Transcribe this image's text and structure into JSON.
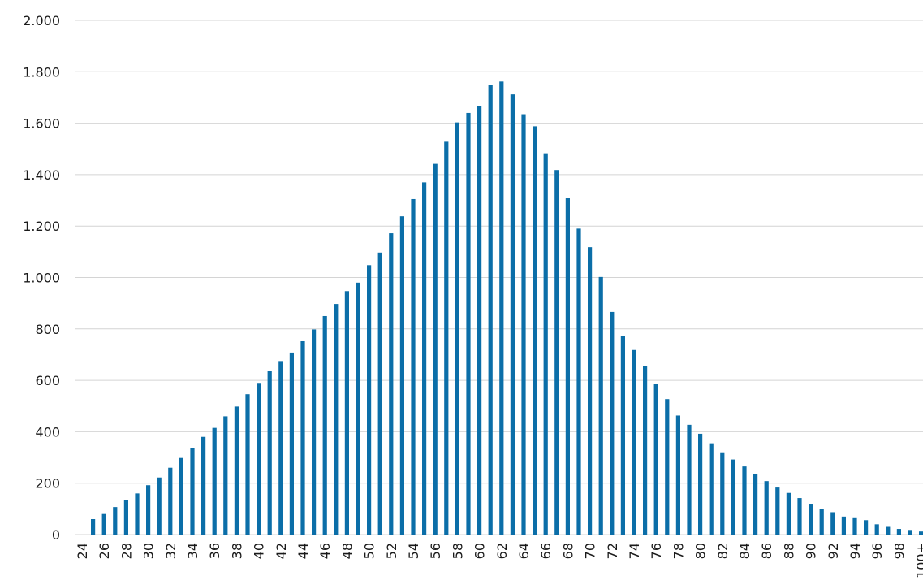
{
  "chart_data": {
    "type": "bar",
    "categories": [
      "24",
      null,
      "26",
      null,
      "28",
      null,
      "30",
      null,
      "32",
      null,
      "34",
      null,
      "36",
      null,
      "38",
      null,
      "40",
      null,
      "42",
      null,
      "44",
      null,
      "46",
      null,
      "48",
      null,
      "50",
      null,
      "52",
      null,
      "54",
      null,
      "56",
      null,
      "58",
      null,
      "60",
      null,
      "62",
      null,
      "64",
      null,
      "66",
      null,
      "68",
      null,
      "70",
      null,
      "72",
      null,
      "74",
      null,
      "76",
      null,
      "78",
      null,
      "80",
      null,
      "82",
      null,
      "84",
      null,
      "86",
      null,
      "88",
      null,
      "90",
      null,
      "92",
      null,
      "94",
      null,
      "96",
      null,
      "98",
      null,
      "100+"
    ],
    "values": [
      0,
      60,
      80,
      107,
      133,
      160,
      192,
      222,
      260,
      298,
      337,
      380,
      415,
      460,
      498,
      546,
      590,
      637,
      675,
      708,
      752,
      798,
      850,
      897,
      947,
      980,
      1048,
      1097,
      1172,
      1238,
      1305,
      1370,
      1442,
      1528,
      1603,
      1640,
      1668,
      1748,
      1762,
      1712,
      1635,
      1588,
      1483,
      1418,
      1308,
      1190,
      1118,
      1002,
      866,
      773,
      718,
      657,
      587,
      527,
      463,
      427,
      392,
      355,
      320,
      292,
      265,
      237,
      208,
      183,
      162,
      142,
      120,
      100,
      87,
      70,
      67,
      56,
      40,
      30,
      22,
      18,
      12
    ],
    "color": "#0b6ea8",
    "ylim": [
      0,
      2000
    ],
    "yticks": [
      0,
      200,
      400,
      600,
      800,
      {
        "value": 1000,
        "label": "1.000"
      },
      {
        "value": 1200,
        "label": "1.200"
      },
      {
        "value": 1400,
        "label": "1.400"
      },
      {
        "value": 1600,
        "label": "1.600"
      },
      {
        "value": 1800,
        "label": "1.800"
      },
      {
        "value": 2000,
        "label": "2.000"
      }
    ],
    "grid": true
  }
}
